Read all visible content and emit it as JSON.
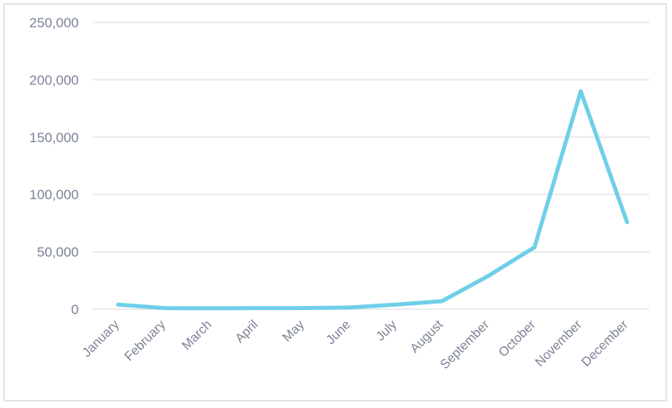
{
  "chart_data": {
    "type": "line",
    "categories": [
      "January",
      "February",
      "March",
      "April",
      "May",
      "June",
      "July",
      "August",
      "September",
      "October",
      "November",
      "December"
    ],
    "series": [
      {
        "values": [
          4000,
          1000,
          800,
          1000,
          1000,
          1500,
          4000,
          7000,
          29000,
          54000,
          190000,
          76000
        ]
      }
    ],
    "ylim": [
      0,
      250000
    ],
    "yticks": [
      0,
      50000,
      100000,
      150000,
      200000,
      250000
    ],
    "ytick_labels": [
      "0",
      "50,000",
      "100,000",
      "150,000",
      "200,000",
      "250,000"
    ],
    "grid": true,
    "legend": "none",
    "title": "",
    "xlabel": "",
    "ylabel": "",
    "colors": {
      "line": "#6fcfe8",
      "grid": "#e4e5e8",
      "text": "#7b8294",
      "border": "#e3e4e6"
    }
  }
}
